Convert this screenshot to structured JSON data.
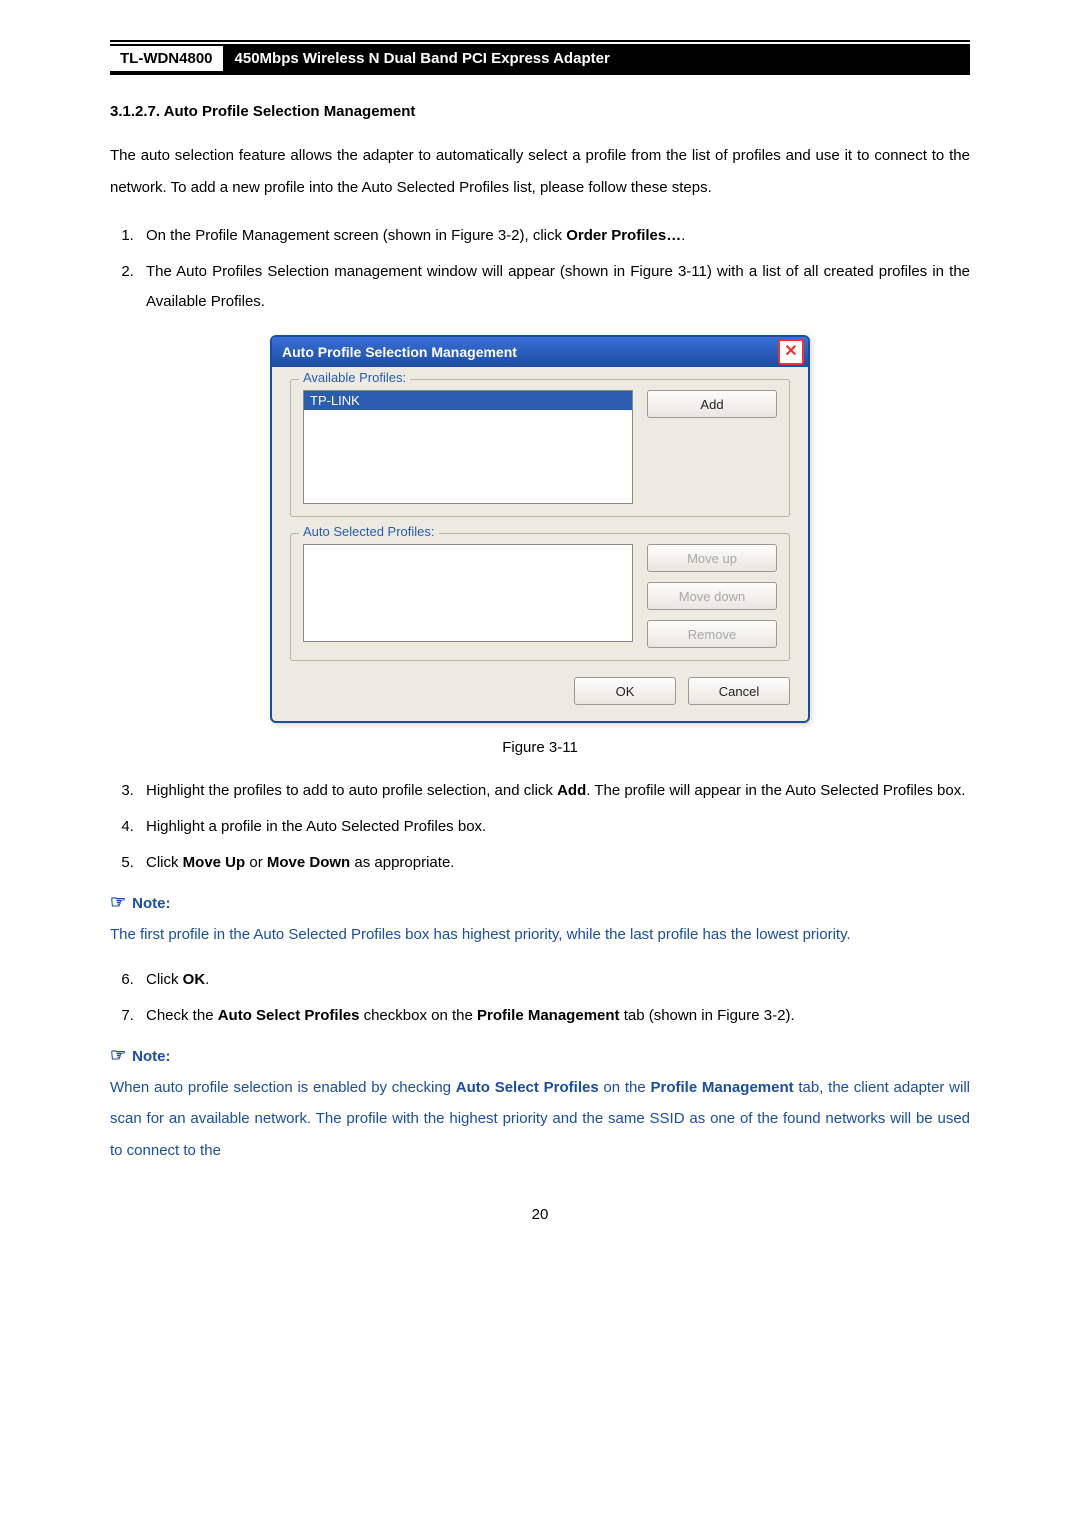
{
  "header": {
    "model": "TL-WDN4800",
    "title": "450Mbps Wireless N Dual Band PCI Express Adapter"
  },
  "section": {
    "number": "3.1.2.7.",
    "title": "Auto Profile Selection Management"
  },
  "intro": "The auto selection feature allows the adapter to automatically select a profile from the list of profiles and use it to connect to the network. To add a new profile into the Auto Selected Profiles list, please follow these steps.",
  "steps_a": {
    "s1_pre": "On the Profile Management screen (shown in Figure 3-2), click ",
    "s1_bold": "Order Profiles…",
    "s1_post": ".",
    "s2": "The Auto Profiles Selection management window will appear (shown in Figure 3-11) with a list of all created profiles in the Available Profiles."
  },
  "dialog": {
    "title": "Auto Profile Selection Management",
    "close_glyph": "✕",
    "available_legend": "Available Profiles:",
    "available_item": "TP-LINK",
    "add_btn": "Add",
    "selected_legend": "Auto Selected Profiles:",
    "moveup_btn": "Move up",
    "movedown_btn": "Move down",
    "remove_btn": "Remove",
    "ok_btn": "OK",
    "cancel_btn": "Cancel"
  },
  "figure_caption": "Figure 3-11",
  "steps_b": {
    "s3_pre": "Highlight the profiles to add to auto profile selection, and click ",
    "s3_bold": "Add",
    "s3_post": ". The profile will appear in the Auto Selected Profiles box.",
    "s4": "Highlight a profile in the Auto Selected Profiles box.",
    "s5_pre": "Click ",
    "s5_b1": "Move Up",
    "s5_mid": " or ",
    "s5_b2": "Move Down",
    "s5_post": " as appropriate."
  },
  "note1": {
    "label": "Note:",
    "body": "The first profile in the Auto Selected Profiles box has highest priority, while the last profile has the lowest priority."
  },
  "steps_c": {
    "s6_pre": "Click ",
    "s6_bold": "OK",
    "s6_post": ".",
    "s7_pre": "Check the ",
    "s7_b1": "Auto Select Profiles",
    "s7_mid": " checkbox on the ",
    "s7_b2": "Profile Management",
    "s7_post": " tab (shown in Figure 3-2)."
  },
  "note2": {
    "label": "Note:",
    "body_pre": "When auto profile selection is enabled by checking ",
    "body_b1": "Auto Select Profiles",
    "body_mid": " on the ",
    "body_b2": "Profile Management",
    "body_post": " tab, the client adapter will scan for an available network. The profile with the highest priority and the same SSID as one of the found networks will be used to connect to the"
  },
  "page_number": "20"
}
